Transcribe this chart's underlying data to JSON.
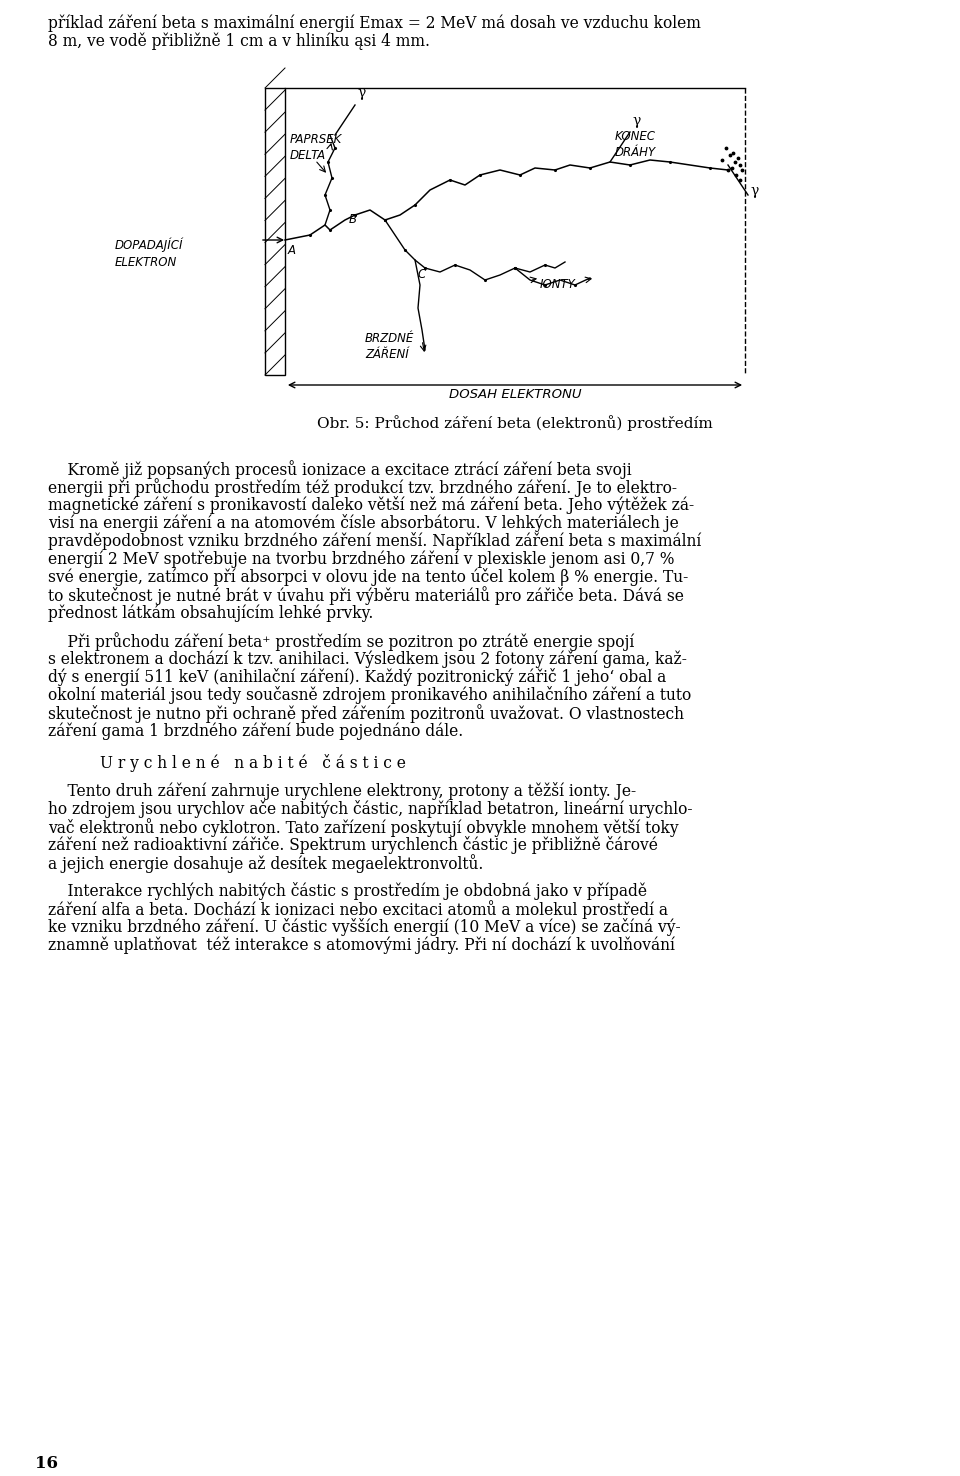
{
  "top_line1": "příklad záření beta s maximální energií E",
  "top_line1_sub": "max",
  "top_line1_rest": " = 2 MeV má dosah ve vzduchu kolem",
  "top_line2": "8 m, ve vodě přibližně 1 cm a v hliníku ąsi 4 mm.",
  "caption": "Obr. 5: Průchod záření beta (elektronů) prostředím",
  "para1_lines": [
    "    Kromě již popsaných procesů ionizace a excitace ztrácí záření beta svoji",
    "energii při průchodu prostředím též produkcí tzv. brzdného záření. Je to elektro-",
    "magnetické záření s pronikavostí daleko větší než má záření beta. Jeho výtěžek zá-",
    "visí na energii záření a na atomovém čísle absorbátoru. V lehkých materiálech je",
    "pravděpodobnost vzniku brzdného záření menší. Například záření beta s maximální",
    "energií 2 MeV spotřebuje na tvorbu brzdného záření v plexiskle jenom asi 0,7 %",
    "své energie, zatímco pří absorpci v olovu jde na tento účel kolem β % energie. Tu-",
    "to skutečnost je nutné brát v úvahu při výběru materiálů pro zářiče beta. Dává se",
    "přednost látkám obsahujícím lehké prvky."
  ],
  "para2_lines": [
    "    Při průchodu záření beta⁺ prostředím se pozitron po ztrátě energie spojí",
    "s elektronem a dochází k tzv. anihilaci. Výsledkem jsou 2 fotony záření gama, kaž-",
    "dý s energií 511 keV (anihilační záření). Každý pozitronický zářič 1 jehoʻ obal a",
    "okolní materiál jsou tedy současně zdrojem pronikavého anihilačního záření a tuto",
    "skutečnost je nutno při ochraně před zářením pozitronů uvažovat. O vlastnostech",
    "záření gama 1 brzdného záření bude pojednáno dále."
  ],
  "section_heading": "U r y c h l e n é   n a b i t é   č á s t i c e",
  "para3_lines": [
    "    Tento druh záření zahrnuje urychlene elektrony, protony a těžší ionty. Je-",
    "ho zdrojem jsou urychlov ače nabitých částic, například betatron, lineární urychlo-",
    "vač elektronů nebo cyklotron. Tato zařízení poskytují obvykle mnohem větší toky",
    "záření než radioaktivní zářiče. Spektrum urychlench částic je přibližně čárové",
    "a jejich energie dosahuje až desítek megaelektronvoltů."
  ],
  "para4_lines": [
    "    Interakce rychlých nabitých částic s prostředím je obdobná jako v případě",
    "záření alfa a beta. Dochází k ionizaci nebo excitaci atomů a molekul prostředí a",
    "ke vzniku brzdného záření. U částic vyšších energií (10 MeV a více) se začíná vý-",
    "znamně uplatňovat  též interakce s atomovými jádry. Při ní dochází k uvolňování"
  ],
  "page_number": "16"
}
